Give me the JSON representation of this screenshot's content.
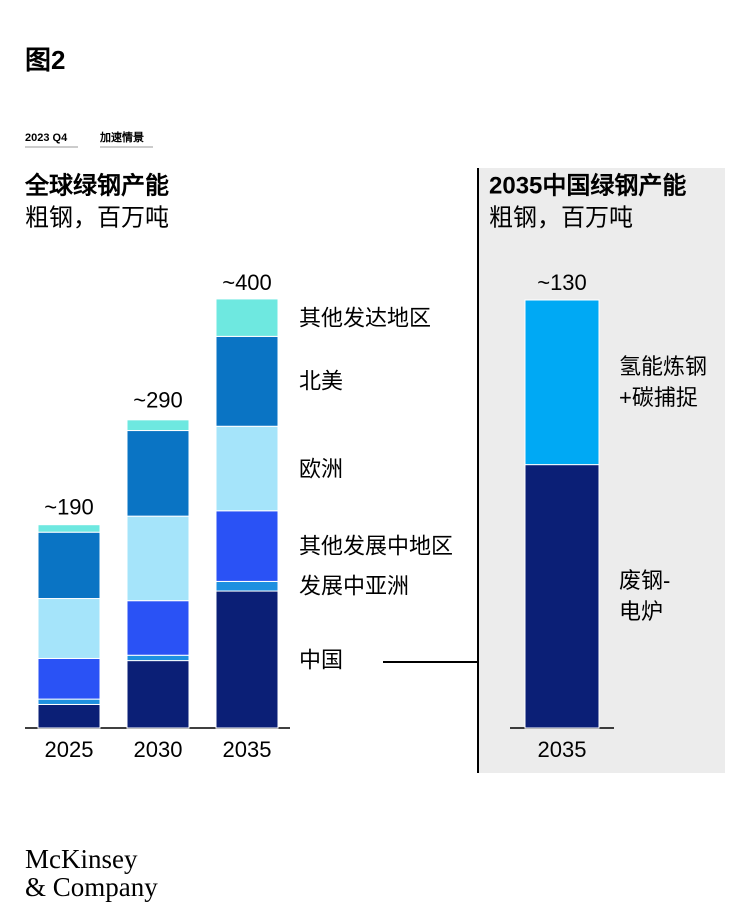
{
  "figure_label": "图2",
  "date": "2023 Q4",
  "scenario": "加速情景",
  "logo": [
    "McKinsey",
    "& Company"
  ],
  "chart_data": [
    {
      "type": "bar",
      "stacked": true,
      "title": "全球绿钢产能",
      "subtitle": "粗钢，百万吨",
      "categories": [
        "2025",
        "2030",
        "2035"
      ],
      "totals": [
        190,
        290,
        400
      ],
      "total_labels": [
        "~190",
        "~290",
        "~400"
      ],
      "series": [
        {
          "name": "中国",
          "color": "#0b1f76",
          "values": [
            22,
            63,
            128
          ]
        },
        {
          "name": "发展中亚洲",
          "color": "#1e90e0",
          "values": [
            5,
            5,
            9
          ]
        },
        {
          "name": "其他发展中地区",
          "color": "#2a52f5",
          "values": [
            38,
            51,
            66
          ]
        },
        {
          "name": "欧洲",
          "color": "#a5e4fa",
          "values": [
            56,
            79,
            79
          ]
        },
        {
          "name": "北美",
          "color": "#0a74c4",
          "values": [
            62,
            80,
            84
          ]
        },
        {
          "name": "其他发达地区",
          "color": "#6ee8e0",
          "values": [
            7,
            10,
            35
          ]
        }
      ]
    },
    {
      "type": "bar",
      "stacked": true,
      "title": "2035中国绿钢产能",
      "subtitle": "粗钢，百万吨",
      "categories": [
        "2035"
      ],
      "totals": [
        130
      ],
      "total_labels": [
        "~130"
      ],
      "series": [
        {
          "name": "废钢-\n电炉",
          "color": "#0b1f76",
          "values": [
            80
          ]
        },
        {
          "name": "氢能炼钢\n+碳捕捉",
          "color": "#00a9f4",
          "values": [
            50
          ]
        }
      ]
    }
  ]
}
